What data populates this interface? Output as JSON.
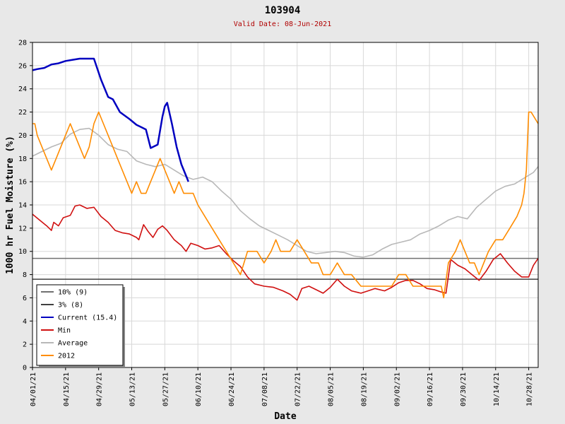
{
  "chart_data": {
    "type": "line",
    "title": "103904",
    "subtitle": "Valid Date: 08-Jun-2021",
    "xlabel": "Date",
    "ylabel": "1000 hr Fuel Moisture (%)",
    "ylim": [
      0,
      28
    ],
    "yticks": [
      0,
      2,
      4,
      6,
      8,
      10,
      12,
      14,
      16,
      18,
      20,
      22,
      24,
      26,
      28
    ],
    "xrange": [
      "2021-04-01",
      "2021-11-01"
    ],
    "xtick_dates": [
      "2021-04-01",
      "2021-04-15",
      "2021-04-29",
      "2021-05-13",
      "2021-05-27",
      "2021-06-10",
      "2021-06-24",
      "2021-07-08",
      "2021-07-22",
      "2021-08-05",
      "2021-08-19",
      "2021-09-02",
      "2021-09-16",
      "2021-09-30",
      "2021-10-14",
      "2021-10-28"
    ],
    "xtick_labels": [
      "04/01/21",
      "04/15/21",
      "04/29/21",
      "05/13/21",
      "05/27/21",
      "06/10/21",
      "06/24/21",
      "07/08/21",
      "07/22/21",
      "08/05/21",
      "08/19/21",
      "09/02/21",
      "09/16/21",
      "09/30/21",
      "10/14/21",
      "10/28/21"
    ],
    "grid": true,
    "legend_position": "bottom-left",
    "thresholds": [
      {
        "name": "10% (9)",
        "value": 9.4,
        "color": "#707070"
      },
      {
        "name": "3% (8)",
        "value": 7.6,
        "color": "#404040"
      }
    ],
    "series": [
      {
        "name": "Current (15.4)",
        "color": "#0000c0",
        "x": [
          "2021-04-01",
          "2021-04-03",
          "2021-04-06",
          "2021-04-09",
          "2021-04-12",
          "2021-04-15",
          "2021-04-18",
          "2021-04-21",
          "2021-04-24",
          "2021-04-27",
          "2021-04-30",
          "2021-05-03",
          "2021-05-05",
          "2021-05-08",
          "2021-05-10",
          "2021-05-12",
          "2021-05-15",
          "2021-05-17",
          "2021-05-19",
          "2021-05-21",
          "2021-05-24",
          "2021-05-26",
          "2021-05-27",
          "2021-05-28",
          "2021-05-30",
          "2021-06-01",
          "2021-06-03",
          "2021-06-05",
          "2021-06-06"
        ],
        "y": [
          25.6,
          25.7,
          25.8,
          26.1,
          26.2,
          26.4,
          26.5,
          26.6,
          26.6,
          26.6,
          24.8,
          23.3,
          23.1,
          22.0,
          21.7,
          21.4,
          20.9,
          20.7,
          20.5,
          18.9,
          19.2,
          21.6,
          22.5,
          22.8,
          21.0,
          19.0,
          17.5,
          16.5,
          16.0
        ]
      },
      {
        "name": "Min",
        "color": "#d01010",
        "x": [
          "2021-04-01",
          "2021-04-04",
          "2021-04-07",
          "2021-04-09",
          "2021-04-10",
          "2021-04-12",
          "2021-04-14",
          "2021-04-17",
          "2021-04-19",
          "2021-04-21",
          "2021-04-24",
          "2021-04-27",
          "2021-04-30",
          "2021-05-03",
          "2021-05-06",
          "2021-05-09",
          "2021-05-12",
          "2021-05-15",
          "2021-05-16",
          "2021-05-18",
          "2021-05-20",
          "2021-05-22",
          "2021-05-24",
          "2021-05-26",
          "2021-05-28",
          "2021-05-31",
          "2021-06-03",
          "2021-06-05",
          "2021-06-07",
          "2021-06-10",
          "2021-06-13",
          "2021-06-16",
          "2021-06-19",
          "2021-06-22",
          "2021-06-25",
          "2021-06-28",
          "2021-07-01",
          "2021-07-04",
          "2021-07-08",
          "2021-07-12",
          "2021-07-16",
          "2021-07-19",
          "2021-07-22",
          "2021-07-24",
          "2021-07-27",
          "2021-07-30",
          "2021-08-02",
          "2021-08-05",
          "2021-08-08",
          "2021-08-11",
          "2021-08-14",
          "2021-08-18",
          "2021-08-21",
          "2021-08-24",
          "2021-08-28",
          "2021-08-31",
          "2021-09-03",
          "2021-09-06",
          "2021-09-09",
          "2021-09-12",
          "2021-09-15",
          "2021-09-18",
          "2021-09-21",
          "2021-09-23",
          "2021-09-25",
          "2021-09-28",
          "2021-10-01",
          "2021-10-04",
          "2021-10-07",
          "2021-10-10",
          "2021-10-13",
          "2021-10-16",
          "2021-10-19",
          "2021-10-22",
          "2021-10-25",
          "2021-10-28",
          "2021-10-30",
          "2021-11-01"
        ],
        "y": [
          13.2,
          12.7,
          12.2,
          11.8,
          12.5,
          12.2,
          12.9,
          13.1,
          13.9,
          14.0,
          13.7,
          13.8,
          13.0,
          12.5,
          11.8,
          11.6,
          11.5,
          11.2,
          11.0,
          12.3,
          11.7,
          11.2,
          11.9,
          12.2,
          11.8,
          11.0,
          10.5,
          10.0,
          10.7,
          10.5,
          10.2,
          10.3,
          10.5,
          9.8,
          9.2,
          8.7,
          7.8,
          7.2,
          7.0,
          6.9,
          6.6,
          6.3,
          5.8,
          6.8,
          7.0,
          6.7,
          6.4,
          6.9,
          7.6,
          7.0,
          6.6,
          6.4,
          6.6,
          6.8,
          6.6,
          6.9,
          7.3,
          7.5,
          7.5,
          7.2,
          6.8,
          6.7,
          6.5,
          6.4,
          9.3,
          8.8,
          8.5,
          8.0,
          7.5,
          8.3,
          9.3,
          9.8,
          9.0,
          8.3,
          7.8,
          7.8,
          8.8,
          9.4
        ]
      },
      {
        "name": "Average",
        "color": "#b8b8b8",
        "x": [
          "2021-04-01",
          "2021-04-05",
          "2021-04-09",
          "2021-04-13",
          "2021-04-17",
          "2021-04-21",
          "2021-04-25",
          "2021-04-29",
          "2021-05-03",
          "2021-05-07",
          "2021-05-11",
          "2021-05-15",
          "2021-05-19",
          "2021-05-23",
          "2021-05-27",
          "2021-05-31",
          "2021-06-04",
          "2021-06-08",
          "2021-06-12",
          "2021-06-16",
          "2021-06-20",
          "2021-06-24",
          "2021-06-28",
          "2021-07-02",
          "2021-07-06",
          "2021-07-10",
          "2021-07-14",
          "2021-07-18",
          "2021-07-22",
          "2021-07-26",
          "2021-07-30",
          "2021-08-03",
          "2021-08-07",
          "2021-08-11",
          "2021-08-15",
          "2021-08-19",
          "2021-08-23",
          "2021-08-27",
          "2021-08-31",
          "2021-09-04",
          "2021-09-08",
          "2021-09-12",
          "2021-09-16",
          "2021-09-20",
          "2021-09-24",
          "2021-09-28",
          "2021-10-02",
          "2021-10-06",
          "2021-10-10",
          "2021-10-14",
          "2021-10-18",
          "2021-10-22",
          "2021-10-26",
          "2021-10-30",
          "2021-11-01"
        ],
        "y": [
          18.2,
          18.6,
          19.0,
          19.3,
          20.1,
          20.5,
          20.6,
          20.0,
          19.2,
          18.8,
          18.6,
          17.8,
          17.5,
          17.3,
          17.5,
          17.0,
          16.5,
          16.2,
          16.4,
          16.0,
          15.2,
          14.5,
          13.5,
          12.8,
          12.2,
          11.8,
          11.4,
          11.0,
          10.5,
          10.0,
          9.8,
          9.9,
          10.0,
          9.9,
          9.6,
          9.5,
          9.7,
          10.2,
          10.6,
          10.8,
          11.0,
          11.5,
          11.8,
          12.2,
          12.7,
          13.0,
          12.8,
          13.8,
          14.5,
          15.2,
          15.6,
          15.8,
          16.3,
          16.8,
          17.3
        ]
      },
      {
        "name": "2012",
        "color": "#ff8c00",
        "x": [
          "2021-04-01",
          "2021-04-02",
          "2021-04-03",
          "2021-04-05",
          "2021-04-07",
          "2021-04-09",
          "2021-04-11",
          "2021-04-13",
          "2021-04-15",
          "2021-04-17",
          "2021-04-19",
          "2021-04-21",
          "2021-04-23",
          "2021-04-25",
          "2021-04-27",
          "2021-04-29",
          "2021-05-01",
          "2021-05-03",
          "2021-05-05",
          "2021-05-07",
          "2021-05-09",
          "2021-05-11",
          "2021-05-13",
          "2021-05-15",
          "2021-05-17",
          "2021-05-19",
          "2021-05-21",
          "2021-05-23",
          "2021-05-25",
          "2021-05-27",
          "2021-05-29",
          "2021-05-31",
          "2021-06-02",
          "2021-06-04",
          "2021-06-06",
          "2021-06-08",
          "2021-06-10",
          "2021-06-13",
          "2021-06-16",
          "2021-06-19",
          "2021-06-22",
          "2021-06-25",
          "2021-06-28",
          "2021-07-01",
          "2021-07-03",
          "2021-07-05",
          "2021-07-08",
          "2021-07-11",
          "2021-07-13",
          "2021-07-15",
          "2021-07-17",
          "2021-07-19",
          "2021-07-22",
          "2021-07-25",
          "2021-07-28",
          "2021-07-31",
          "2021-08-02",
          "2021-08-05",
          "2021-08-08",
          "2021-08-11",
          "2021-08-14",
          "2021-08-18",
          "2021-08-21",
          "2021-08-24",
          "2021-08-28",
          "2021-08-31",
          "2021-09-03",
          "2021-09-06",
          "2021-09-09",
          "2021-09-12",
          "2021-09-15",
          "2021-09-18",
          "2021-09-21",
          "2021-09-22",
          "2021-09-24",
          "2021-09-27",
          "2021-09-29",
          "2021-10-01",
          "2021-10-03",
          "2021-10-05",
          "2021-10-07",
          "2021-10-09",
          "2021-10-11",
          "2021-10-14",
          "2021-10-17",
          "2021-10-20",
          "2021-10-23",
          "2021-10-25",
          "2021-10-26",
          "2021-10-27",
          "2021-10-28",
          "2021-10-29",
          "2021-11-01"
        ],
        "y": [
          21,
          21,
          20,
          19,
          18,
          17,
          18,
          19,
          20,
          21,
          20,
          19,
          18,
          19,
          21,
          22,
          21,
          20,
          19,
          18,
          17,
          16,
          15,
          16,
          15,
          15,
          16,
          17,
          18,
          17,
          16,
          15,
          16,
          15,
          15,
          15,
          14,
          13,
          12,
          11,
          10,
          9,
          8,
          10,
          10,
          10,
          9,
          10,
          11,
          10,
          10,
          10,
          11,
          10,
          9,
          9,
          8,
          8,
          9,
          8,
          8,
          7,
          7,
          7,
          7,
          7,
          8,
          8,
          7,
          7,
          7,
          7,
          7,
          6,
          9,
          10,
          11,
          10,
          9,
          9,
          8,
          9,
          10,
          11,
          11,
          12,
          13,
          14,
          15,
          17,
          22,
          22,
          21
        ]
      }
    ]
  }
}
